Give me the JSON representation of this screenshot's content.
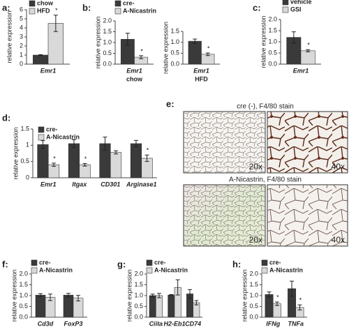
{
  "chart_data": [
    {
      "type": "bar",
      "label": "a:",
      "ylabel": "relative expression",
      "categories": [
        "Emr1"
      ],
      "ylim": [
        0,
        6
      ],
      "yticks": [
        0,
        1,
        2,
        3,
        4,
        5,
        6
      ],
      "series": [
        {
          "name": "chow",
          "color": "#3a3a3a",
          "values": [
            1.0
          ],
          "errors": [
            0.05
          ],
          "annotations": [
            null
          ]
        },
        {
          "name": "HFD",
          "color": "#d9d9d9",
          "values": [
            4.5
          ],
          "errors": [
            0.9
          ],
          "annotations": [
            "*"
          ]
        }
      ]
    },
    {
      "type": "bar",
      "label": "b:",
      "ylabel": "relative expression",
      "categories": [
        "Emr1"
      ],
      "xlabel": "chow",
      "ylim": [
        0,
        2
      ],
      "yticks": [
        {
          "value": 0,
          "label": "0.0"
        },
        {
          "value": 0.5,
          "label": "0.5"
        },
        {
          "value": 1,
          "label": "1.0"
        },
        {
          "value": 1.5,
          "label": "1.5"
        },
        {
          "value": 2,
          "label": "2.0"
        }
      ],
      "series": [
        {
          "name": "cre-",
          "color": "#3a3a3a",
          "values": [
            1.15
          ],
          "errors": [
            0.28
          ],
          "annotations": [
            null
          ]
        },
        {
          "name": "A-Nicastrin",
          "color": "#d9d9d9",
          "values": [
            0.32
          ],
          "errors": [
            0.07
          ],
          "annotations": [
            "*"
          ]
        }
      ]
    },
    {
      "type": "bar",
      "ylabel": "relative expression",
      "categories": [
        "Emr1"
      ],
      "xlabel": "HFD",
      "ylim": [
        0,
        1.5
      ],
      "yticks": [
        {
          "value": 0,
          "label": "0.0"
        },
        {
          "value": 0.5,
          "label": "0.5"
        },
        {
          "value": 1,
          "label": "1.0"
        },
        {
          "value": 1.5,
          "label": "1.5"
        }
      ],
      "series": [
        {
          "color": "#3a3a3a",
          "values": [
            1.05
          ],
          "errors": [
            0.1
          ],
          "annotations": [
            null
          ]
        },
        {
          "color": "#d9d9d9",
          "values": [
            0.45
          ],
          "errors": [
            0.06
          ],
          "annotations": [
            "*"
          ]
        }
      ]
    },
    {
      "type": "bar",
      "label": "c:",
      "ylabel": "relative expression",
      "categories": [
        "Emr1"
      ],
      "ylim": [
        0,
        2
      ],
      "yticks": [
        {
          "value": 0,
          "label": "0.0"
        },
        {
          "value": 0.5,
          "label": "0.5"
        },
        {
          "value": 1,
          "label": "1.0"
        },
        {
          "value": 1.5,
          "label": "1.5"
        },
        {
          "value": 2,
          "label": "2.0"
        }
      ],
      "series": [
        {
          "name": "vehicle",
          "color": "#3a3a3a",
          "values": [
            1.2
          ],
          "errors": [
            0.25
          ],
          "annotations": [
            null
          ]
        },
        {
          "name": "GSI",
          "color": "#d9d9d9",
          "values": [
            0.6
          ],
          "errors": [
            0.05
          ],
          "annotations": [
            "*"
          ]
        }
      ]
    },
    {
      "type": "bar",
      "label": "d:",
      "ylabel": "relative expression",
      "categories": [
        "Emr1",
        "Itgax",
        "CD301",
        "Arginase1"
      ],
      "ylim": [
        0,
        1.5
      ],
      "yticks": [
        0,
        0.5,
        1,
        1.5
      ],
      "series": [
        {
          "name": "cre-",
          "color": "#3a3a3a",
          "values": [
            1.02,
            1.05,
            1.05,
            1.05
          ],
          "errors": [
            0.12,
            0.12,
            0.2,
            0.1
          ],
          "annotations": [
            null,
            null,
            null,
            null
          ]
        },
        {
          "name": "A-Nicastrin",
          "color": "#d9d9d9",
          "values": [
            0.4,
            0.4,
            0.78,
            0.6
          ],
          "errors": [
            0.05,
            0.04,
            0.05,
            0.1
          ],
          "annotations": [
            "*",
            "*",
            null,
            "*"
          ]
        }
      ]
    },
    {
      "type": "bar",
      "label": "f:",
      "ylabel": "relative expression",
      "categories": [
        "Cd3d",
        "FoxP3"
      ],
      "ylim": [
        0,
        2
      ],
      "yticks": [
        {
          "value": 0,
          "label": "0.0"
        },
        {
          "value": 0.5,
          "label": "0.5"
        },
        {
          "value": 1,
          "label": "1.0"
        },
        {
          "value": 1.5,
          "label": "1.5"
        },
        {
          "value": 2,
          "label": "2.0"
        }
      ],
      "series": [
        {
          "name": "cre-",
          "color": "#3a3a3a",
          "values": [
            1.02,
            1.02
          ],
          "errors": [
            0.07,
            0.08
          ],
          "annotations": [
            null,
            null
          ]
        },
        {
          "name": "A-Nicastrin",
          "color": "#d9d9d9",
          "values": [
            0.92,
            0.88
          ],
          "errors": [
            0.15,
            0.13
          ],
          "annotations": [
            null,
            null
          ]
        }
      ]
    },
    {
      "type": "bar",
      "label": "g:",
      "ylabel": "relative expression",
      "categories": [
        "Ciita",
        "H2-Eb1",
        "CD74"
      ],
      "ylim": [
        0,
        2
      ],
      "yticks": [
        {
          "value": 0,
          "label": "0.0"
        },
        {
          "value": 0.5,
          "label": "0.5"
        },
        {
          "value": 1,
          "label": "1.0"
        },
        {
          "value": 1.5,
          "label": "1.5"
        },
        {
          "value": 2,
          "label": "2.0"
        }
      ],
      "series": [
        {
          "name": "cre-",
          "color": "#3a3a3a",
          "values": [
            1.0,
            1.02,
            1.08
          ],
          "errors": [
            0.07,
            0.03,
            0.2
          ],
          "annotations": [
            null,
            null,
            null
          ]
        },
        {
          "name": "A-Nicastrin",
          "color": "#d9d9d9",
          "values": [
            1.0,
            1.38,
            0.67
          ],
          "errors": [
            0.1,
            0.35,
            0.1
          ],
          "annotations": [
            null,
            null,
            null
          ]
        }
      ]
    },
    {
      "type": "bar",
      "label": "h:",
      "ylabel": "relative expression",
      "categories": [
        "IFNg",
        "TNFa"
      ],
      "ylim": [
        0,
        2
      ],
      "yticks": [
        {
          "value": 0,
          "label": "0.0"
        },
        {
          "value": 0.5,
          "label": "0.5"
        },
        {
          "value": 1,
          "label": "1.0"
        },
        {
          "value": 1.5,
          "label": "1.5"
        },
        {
          "value": 2,
          "label": "2.0"
        }
      ],
      "series": [
        {
          "name": "cre-",
          "color": "#3a3a3a",
          "values": [
            1.05,
            1.32
          ],
          "errors": [
            0.12,
            0.35
          ],
          "annotations": [
            null,
            null
          ]
        },
        {
          "name": "A-Nicastrin",
          "color": "#d9d9d9",
          "values": [
            0.62,
            0.45
          ],
          "errors": [
            0.08,
            0.12
          ],
          "annotations": [
            "*",
            "*"
          ]
        }
      ]
    }
  ],
  "images": {
    "label": "e:",
    "panels": [
      {
        "title": "cre (-), F4/80 stain",
        "magnifications": [
          "20x",
          "40x"
        ]
      },
      {
        "title": "A-Nicastrin, F4/80 stain",
        "magnifications": [
          "20x",
          "40x"
        ]
      }
    ]
  }
}
